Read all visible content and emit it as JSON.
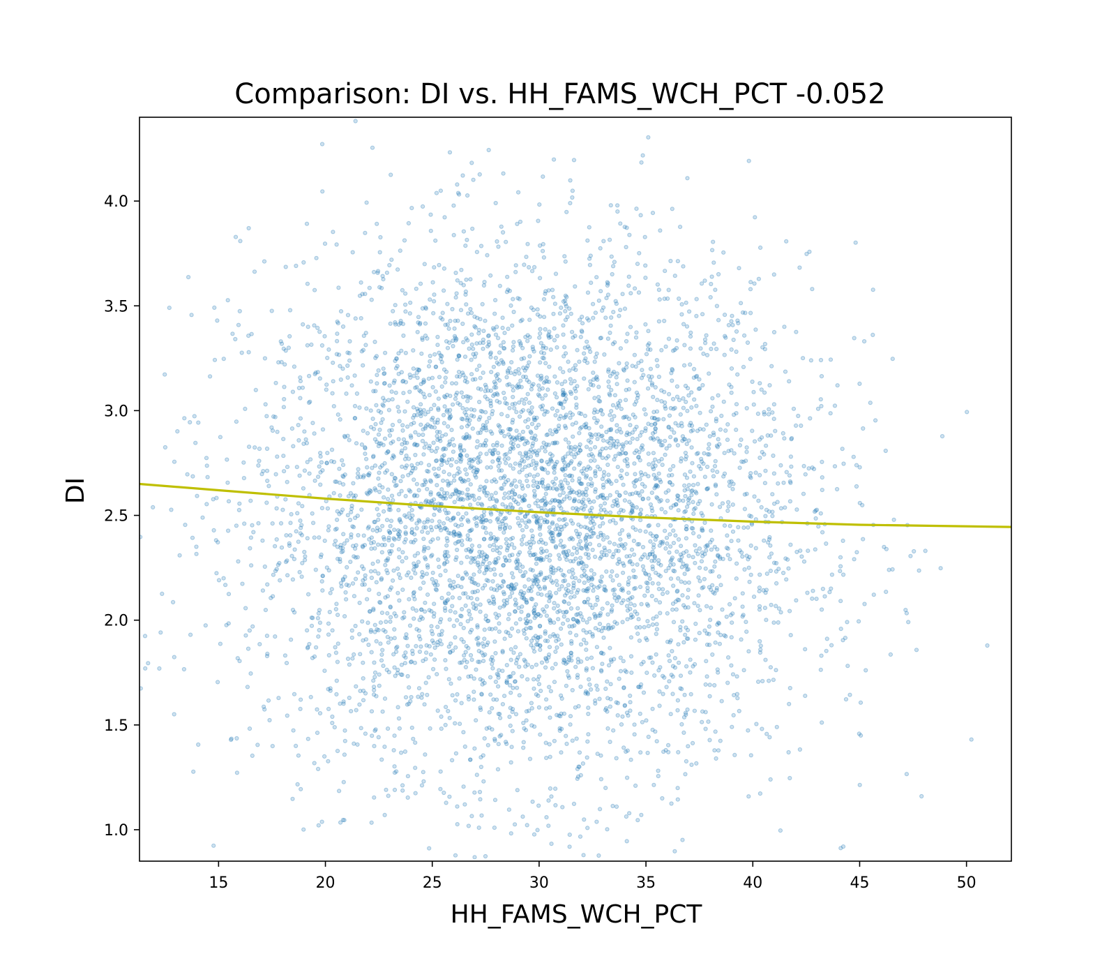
{
  "chart_data": {
    "type": "scatter",
    "title": "Comparison:  DI  vs.  HH_FAMS_WCH_PCT  -0.052",
    "xlabel": "HH_FAMS_WCH_PCT",
    "ylabel": "DI",
    "xlim": [
      11.3,
      52.1
    ],
    "ylim": [
      0.85,
      4.4
    ],
    "xticks": [
      15,
      20,
      25,
      30,
      35,
      40,
      45,
      50
    ],
    "yticks": [
      1.0,
      1.5,
      2.0,
      2.5,
      3.0,
      3.5,
      4.0
    ],
    "xtick_labels": [
      "15",
      "20",
      "25",
      "30",
      "35",
      "40",
      "45",
      "50"
    ],
    "ytick_labels": [
      "1.0",
      "1.5",
      "2.0",
      "2.5",
      "3.0",
      "3.5",
      "4.0"
    ],
    "grid": false,
    "legend": "none",
    "correlation": -0.052,
    "scatter_summary": {
      "approx_points": 5000,
      "x_center": 29.5,
      "x_spread_sd": 6.5,
      "y_center": 2.5,
      "y_spread_sd": 0.62,
      "x_range": [
        11.3,
        52.0
      ],
      "y_range": [
        0.85,
        4.4
      ]
    },
    "trend_line": {
      "x": [
        11.3,
        15,
        20,
        25,
        30,
        35,
        40,
        45,
        52.1
      ],
      "y": [
        2.65,
        2.62,
        2.58,
        2.545,
        2.515,
        2.49,
        2.47,
        2.455,
        2.445
      ]
    },
    "colors": {
      "points": "#1f77b4",
      "trend": "#bfbf00"
    }
  }
}
